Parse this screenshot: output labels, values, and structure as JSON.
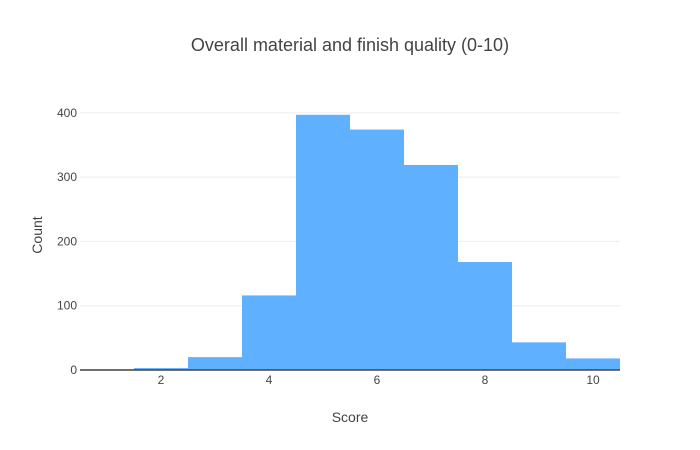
{
  "chart_data": {
    "type": "bar",
    "title": "Overall material and finish quality (0-10)",
    "xlabel": "Score",
    "ylabel": "Count",
    "bin_width": 1,
    "x": [
      1,
      2,
      3,
      4,
      5,
      6,
      7,
      8,
      9,
      10
    ],
    "values": [
      1,
      3,
      20,
      116,
      397,
      374,
      319,
      168,
      43,
      18
    ],
    "xlim": [
      0.5,
      10.5
    ],
    "ylim": [
      0,
      420
    ],
    "xticks": [
      2,
      4,
      6,
      8,
      10
    ],
    "yticks": [
      0,
      100,
      200,
      300,
      400
    ],
    "grid": true,
    "bar_color": "#5fb0ff",
    "text_color": "#444444"
  }
}
